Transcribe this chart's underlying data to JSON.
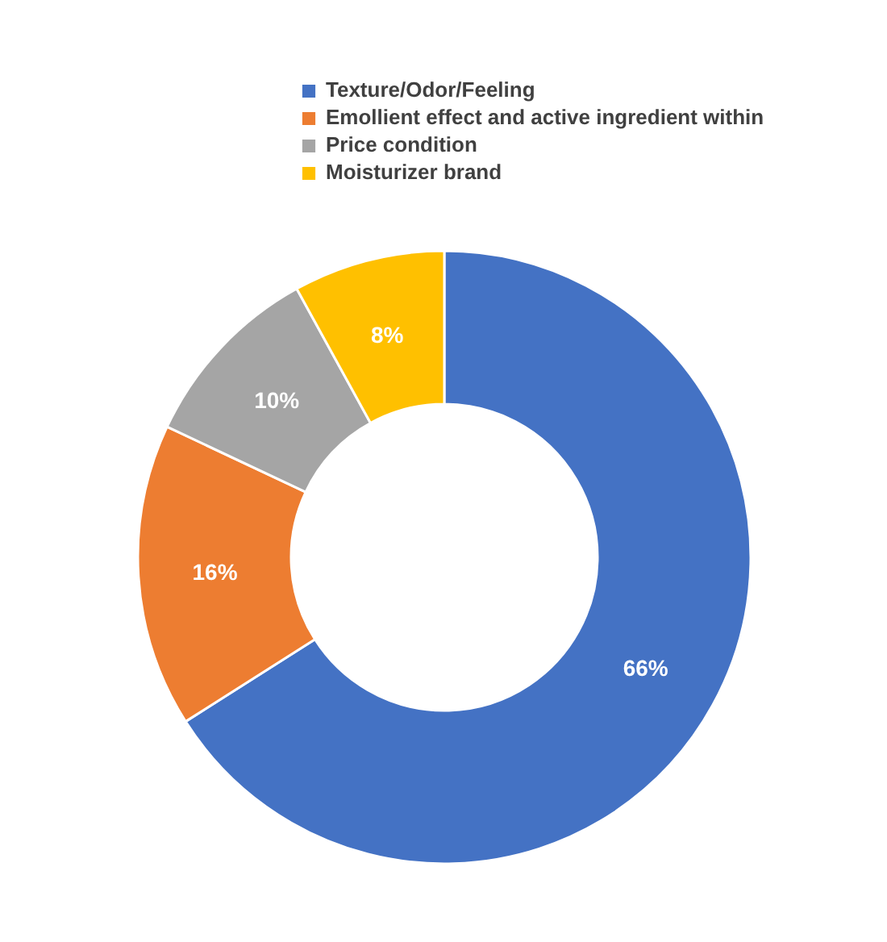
{
  "chart_data": {
    "type": "donut",
    "categories": [
      "Texture/Odor/Feeling",
      "Emollient effect and active ingredient within",
      "Price condition",
      "Moisturizer brand"
    ],
    "values": [
      66,
      16,
      10,
      8
    ],
    "colors": [
      "#4472c4",
      "#ed7d31",
      "#a5a5a5",
      "#ffc000"
    ],
    "value_labels": [
      "66%",
      "16%",
      "10%",
      "8%"
    ],
    "legend": "top"
  }
}
